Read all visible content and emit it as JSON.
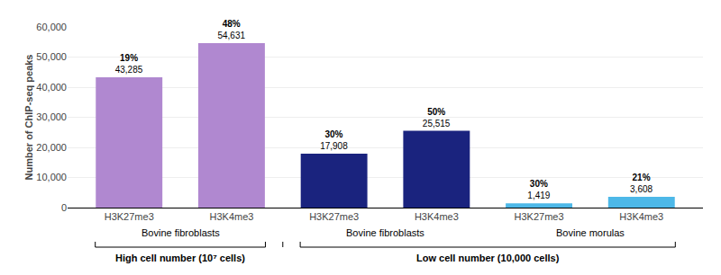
{
  "chart_data": {
    "type": "bar",
    "categories": [
      "H3K27me3",
      "H3K4me3",
      "H3K27me3",
      "H3K4me3",
      "H3K27me3",
      "H3K4me3"
    ],
    "values": [
      43285,
      54631,
      17908,
      25515,
      1419,
      3608
    ],
    "value_labels": [
      "43,285",
      "54,631",
      "17,908",
      "25,515",
      "1,419",
      "3,608"
    ],
    "annotations": [
      "19%",
      "48%",
      "30%",
      "50%",
      "30%",
      "21%"
    ],
    "colors": [
      "#b088d0",
      "#b088d0",
      "#1a237e",
      "#1a237e",
      "#4db8e8",
      "#4db8e8"
    ],
    "groups": [
      0,
      0,
      1,
      1,
      2,
      2
    ],
    "group_names": [
      "Bovine fibroblasts",
      "Bovine fibroblasts",
      "Bovine morulas"
    ],
    "sections": [
      {
        "label": "High cell number (10⁷ cells)",
        "groups": [
          0
        ]
      },
      {
        "label": "Low cell number (10,000 cells)",
        "groups": [
          1,
          2
        ]
      }
    ],
    "ylabel": "Number of ChIP-seq peaks",
    "ylim": [
      0,
      60000
    ],
    "yticks": [
      0,
      {
        "value": 10000,
        "label": "10,000"
      },
      {
        "value": 20000,
        "label": "20,000"
      },
      {
        "value": 30000,
        "label": "30,000"
      },
      {
        "value": 40000,
        "label": "40,000"
      },
      {
        "value": 50000,
        "label": "50,000"
      },
      {
        "value": 60000,
        "label": "60,000"
      }
    ],
    "grid": true,
    "data_labels": true
  }
}
